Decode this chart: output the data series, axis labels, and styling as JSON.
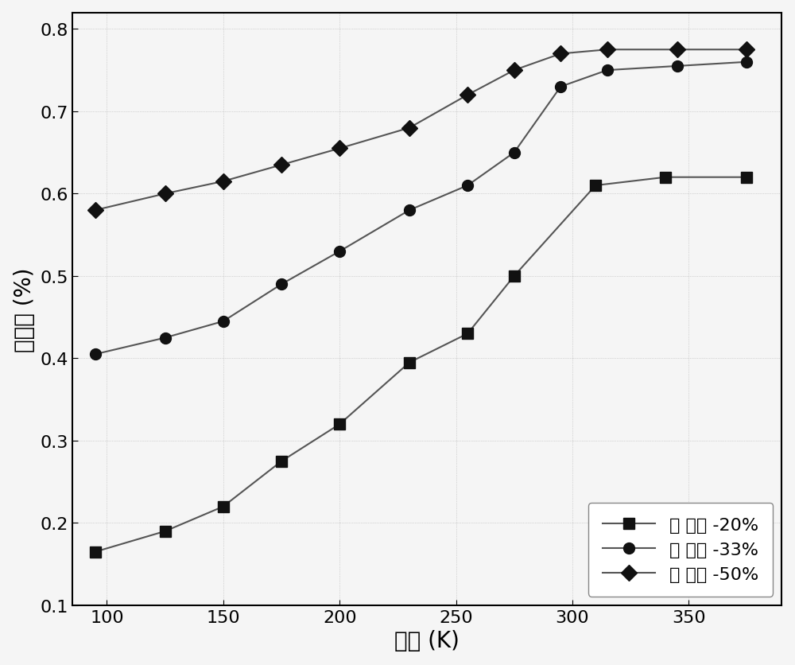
{
  "series": [
    {
      "label": "氧 含量 -20%",
      "marker": "s",
      "x": [
        95,
        125,
        150,
        175,
        200,
        230,
        255,
        275,
        310,
        340,
        375
      ],
      "y": [
        0.165,
        0.19,
        0.22,
        0.275,
        0.32,
        0.395,
        0.43,
        0.5,
        0.61,
        0.62,
        0.62
      ]
    },
    {
      "label": "氧 含量 -33%",
      "marker": "o",
      "x": [
        95,
        125,
        150,
        175,
        200,
        230,
        255,
        275,
        295,
        315,
        345,
        375
      ],
      "y": [
        0.405,
        0.425,
        0.445,
        0.49,
        0.53,
        0.58,
        0.61,
        0.65,
        0.73,
        0.75,
        0.755,
        0.76
      ]
    },
    {
      "label": "氧 含量 -50%",
      "marker": "D",
      "x": [
        95,
        125,
        150,
        175,
        200,
        230,
        255,
        275,
        295,
        315,
        345,
        375
      ],
      "y": [
        0.58,
        0.6,
        0.615,
        0.635,
        0.655,
        0.68,
        0.72,
        0.75,
        0.77,
        0.775,
        0.775,
        0.775
      ]
    }
  ],
  "xlabel": "温度 (K)",
  "ylabel": "发射率 (%)",
  "xlim": [
    85,
    390
  ],
  "ylim": [
    0.1,
    0.82
  ],
  "xticks": [
    100,
    150,
    200,
    250,
    300,
    350
  ],
  "yticks": [
    0.1,
    0.2,
    0.3,
    0.4,
    0.5,
    0.6,
    0.7,
    0.8
  ],
  "line_color": "#555555",
  "marker_color": "#111111",
  "background_color": "#f5f5f5",
  "legend_loc": "lower right",
  "fontsize_label": 20,
  "fontsize_tick": 16,
  "fontsize_legend": 16,
  "marker_size": 10,
  "line_width": 1.5
}
